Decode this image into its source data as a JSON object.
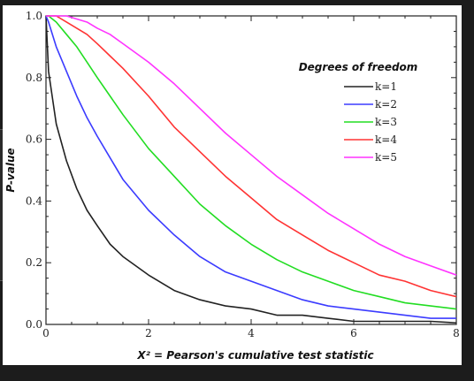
{
  "chart_data": {
    "type": "line",
    "xlabel": "X² = Pearson's cumulative test statistic",
    "ylabel": "P-value",
    "xlim": [
      0,
      8
    ],
    "ylim": [
      0,
      1
    ],
    "xticks": [
      0,
      2,
      4,
      6,
      8
    ],
    "yticks": [
      0.0,
      0.2,
      0.4,
      0.6,
      0.8,
      1.0
    ],
    "xtick_labels": [
      "0",
      "2",
      "4",
      "6",
      "8"
    ],
    "ytick_labels": [
      "0.0",
      "0.2",
      "0.4",
      "0.6",
      "0.8",
      "1.0"
    ],
    "grid": false,
    "legend": {
      "title": "Degrees of freedom",
      "placement": "top-right"
    },
    "x": [
      0.05,
      0.2,
      0.4,
      0.6,
      0.8,
      1,
      1.25,
      1.5,
      2,
      2.5,
      3,
      3.5,
      4,
      4.5,
      5,
      5.5,
      6,
      6.5,
      7,
      7.5,
      8
    ],
    "series": [
      {
        "name": "k=1",
        "color": "#222222",
        "values": [
          0.82,
          0.65,
          0.53,
          0.44,
          0.37,
          0.32,
          0.26,
          0.22,
          0.16,
          0.11,
          0.08,
          0.06,
          0.05,
          0.03,
          0.03,
          0.02,
          0.01,
          0.01,
          0.01,
          0.01,
          0.005
        ]
      },
      {
        "name": "k=2",
        "color": "#3b3bff",
        "values": [
          0.98,
          0.9,
          0.82,
          0.74,
          0.67,
          0.61,
          0.54,
          0.47,
          0.37,
          0.29,
          0.22,
          0.17,
          0.14,
          0.11,
          0.08,
          0.06,
          0.05,
          0.04,
          0.03,
          0.02,
          0.02
        ]
      },
      {
        "name": "k=3",
        "color": "#22dd22",
        "values": [
          1.0,
          0.98,
          0.94,
          0.9,
          0.85,
          0.8,
          0.74,
          0.68,
          0.57,
          0.48,
          0.39,
          0.32,
          0.26,
          0.21,
          0.17,
          0.14,
          0.11,
          0.09,
          0.07,
          0.06,
          0.05
        ]
      },
      {
        "name": "k=4",
        "color": "#ff3333",
        "values": [
          1.0,
          1.0,
          0.98,
          0.96,
          0.94,
          0.91,
          0.87,
          0.83,
          0.74,
          0.64,
          0.56,
          0.48,
          0.41,
          0.34,
          0.29,
          0.24,
          0.2,
          0.16,
          0.14,
          0.11,
          0.09
        ]
      },
      {
        "name": "k=5",
        "color": "#ff33ff",
        "values": [
          1.0,
          1.0,
          1.0,
          0.99,
          0.98,
          0.96,
          0.94,
          0.91,
          0.85,
          0.78,
          0.7,
          0.62,
          0.55,
          0.48,
          0.42,
          0.36,
          0.31,
          0.26,
          0.22,
          0.19,
          0.16
        ]
      }
    ]
  }
}
